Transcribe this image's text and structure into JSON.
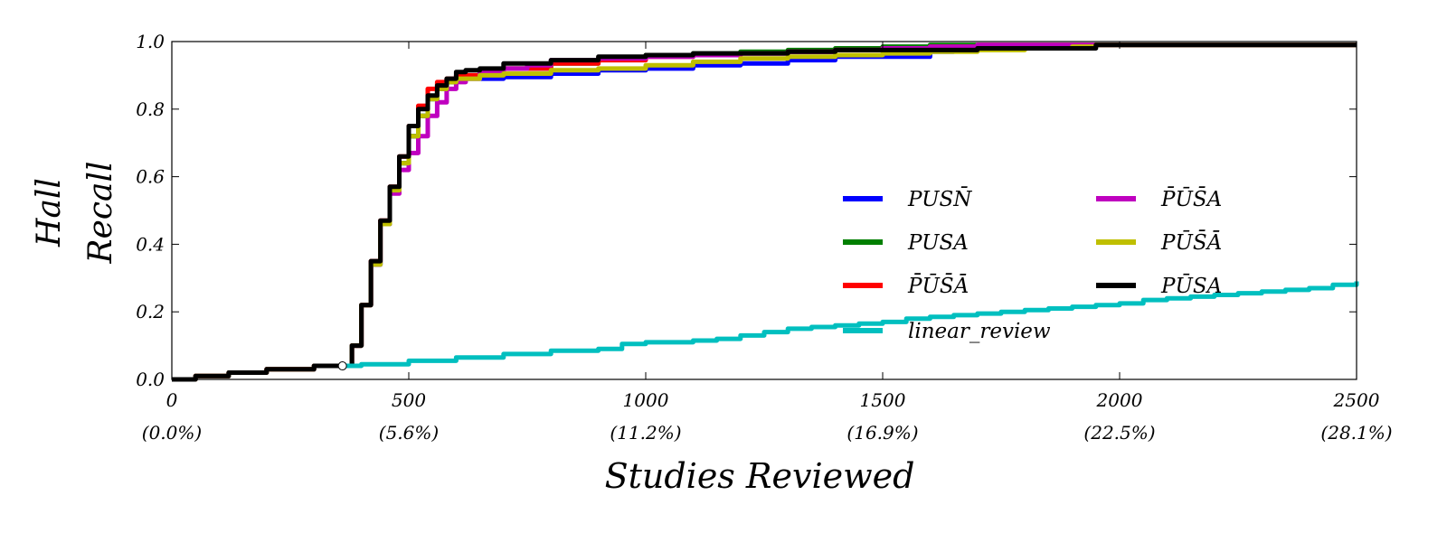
{
  "chart_data": {
    "type": "line",
    "xlabel": "Studies Reviewed",
    "ylabel_line1": "Hall",
    "ylabel_line2": "Recall",
    "xlim": [
      0,
      2500
    ],
    "ylim": [
      0.0,
      1.0
    ],
    "x_ticks": [
      {
        "value": 0,
        "label": "0",
        "sublabel": "(0.0%)"
      },
      {
        "value": 500,
        "label": "500",
        "sublabel": "(5.6%)"
      },
      {
        "value": 1000,
        "label": "1000",
        "sublabel": "(11.2%)"
      },
      {
        "value": 1500,
        "label": "1500",
        "sublabel": "(16.9%)"
      },
      {
        "value": 2000,
        "label": "2000",
        "sublabel": "(22.5%)"
      },
      {
        "value": 2500,
        "label": "2500",
        "sublabel": "(28.1%)"
      }
    ],
    "y_ticks": [
      {
        "value": 0.0,
        "label": "0.0"
      },
      {
        "value": 0.2,
        "label": "0.2"
      },
      {
        "value": 0.4,
        "label": "0.4"
      },
      {
        "value": 0.6,
        "label": "0.6"
      },
      {
        "value": 0.8,
        "label": "0.8"
      },
      {
        "value": 1.0,
        "label": "1.0"
      }
    ],
    "grid": false,
    "legend_placement": "center-right",
    "marker_point": {
      "x": 360,
      "y": 0.04
    },
    "series": [
      {
        "name": "PUSN̄",
        "color": "#0000ff",
        "x": [
          0,
          50,
          120,
          200,
          300,
          360,
          380,
          400,
          420,
          440,
          460,
          480,
          500,
          520,
          540,
          560,
          580,
          600,
          650,
          700,
          800,
          900,
          1000,
          1100,
          1200,
          1300,
          1400,
          1500,
          1600,
          1650,
          1700,
          1900,
          1950,
          2500
        ],
        "y": [
          0,
          0.01,
          0.02,
          0.03,
          0.04,
          0.04,
          0.1,
          0.22,
          0.34,
          0.46,
          0.56,
          0.64,
          0.72,
          0.78,
          0.83,
          0.86,
          0.88,
          0.89,
          0.89,
          0.895,
          0.905,
          0.915,
          0.92,
          0.93,
          0.935,
          0.945,
          0.955,
          0.955,
          0.97,
          0.975,
          0.98,
          0.985,
          0.99,
          0.99
        ]
      },
      {
        "name": "PUSA",
        "color": "#007f00",
        "x": [
          0,
          50,
          120,
          200,
          300,
          360,
          380,
          400,
          420,
          440,
          460,
          480,
          500,
          520,
          540,
          560,
          580,
          600,
          650,
          700,
          800,
          900,
          1000,
          1100,
          1200,
          1300,
          1400,
          1500,
          1600,
          1700,
          1900,
          1950,
          2500
        ],
        "y": [
          0,
          0.01,
          0.02,
          0.03,
          0.04,
          0.04,
          0.1,
          0.22,
          0.34,
          0.46,
          0.56,
          0.64,
          0.72,
          0.78,
          0.83,
          0.86,
          0.88,
          0.895,
          0.91,
          0.92,
          0.935,
          0.95,
          0.96,
          0.965,
          0.97,
          0.975,
          0.98,
          0.985,
          0.99,
          0.99,
          0.99,
          0.99,
          0.99
        ]
      },
      {
        "name": "P̄ŪS̄Ā",
        "color": "#ff0000",
        "x": [
          0,
          50,
          120,
          200,
          300,
          360,
          380,
          400,
          420,
          440,
          460,
          480,
          500,
          520,
          540,
          560,
          580,
          600,
          650,
          700,
          800,
          900,
          1000,
          1100,
          1200,
          1300,
          1400,
          1500,
          1600,
          1700,
          1900,
          1950,
          2500
        ],
        "y": [
          0,
          0.01,
          0.02,
          0.03,
          0.04,
          0.04,
          0.1,
          0.22,
          0.35,
          0.47,
          0.57,
          0.66,
          0.75,
          0.81,
          0.86,
          0.88,
          0.89,
          0.9,
          0.91,
          0.92,
          0.935,
          0.945,
          0.955,
          0.96,
          0.965,
          0.97,
          0.975,
          0.98,
          0.985,
          0.99,
          0.99,
          0.99,
          0.99
        ]
      },
      {
        "name": "P̄ŪS̄A",
        "color": "#bf00bf",
        "x": [
          0,
          50,
          120,
          200,
          300,
          360,
          380,
          400,
          420,
          440,
          460,
          480,
          500,
          520,
          540,
          560,
          580,
          600,
          620,
          650,
          700,
          750,
          800,
          900,
          1000,
          1100,
          1200,
          1300,
          1400,
          1500,
          1600,
          1700,
          1900,
          1950,
          2500
        ],
        "y": [
          0,
          0.01,
          0.02,
          0.03,
          0.04,
          0.04,
          0.1,
          0.22,
          0.34,
          0.46,
          0.55,
          0.62,
          0.67,
          0.72,
          0.78,
          0.82,
          0.86,
          0.88,
          0.89,
          0.91,
          0.92,
          0.93,
          0.945,
          0.95,
          0.955,
          0.96,
          0.965,
          0.97,
          0.975,
          0.98,
          0.985,
          0.99,
          0.99,
          0.99,
          0.99
        ]
      },
      {
        "name": "PŪS̄Ā",
        "color": "#bfbf00",
        "x": [
          0,
          50,
          120,
          200,
          300,
          360,
          380,
          400,
          420,
          440,
          460,
          480,
          500,
          520,
          540,
          560,
          580,
          600,
          650,
          700,
          800,
          900,
          1000,
          1100,
          1200,
          1300,
          1400,
          1500,
          1600,
          1700,
          1800,
          1900,
          1950,
          2500
        ],
        "y": [
          0,
          0.01,
          0.02,
          0.03,
          0.04,
          0.04,
          0.1,
          0.22,
          0.34,
          0.46,
          0.56,
          0.64,
          0.72,
          0.78,
          0.83,
          0.86,
          0.88,
          0.89,
          0.9,
          0.905,
          0.915,
          0.92,
          0.93,
          0.94,
          0.95,
          0.955,
          0.96,
          0.965,
          0.97,
          0.975,
          0.98,
          0.985,
          0.99,
          0.99
        ]
      },
      {
        "name": "PŪSA",
        "color": "#000000",
        "x": [
          0,
          50,
          120,
          200,
          300,
          360,
          380,
          400,
          420,
          440,
          460,
          480,
          500,
          520,
          540,
          560,
          580,
          600,
          620,
          650,
          700,
          800,
          900,
          1000,
          1100,
          1200,
          1300,
          1400,
          1500,
          1600,
          1700,
          1800,
          1900,
          1950,
          2500
        ],
        "y": [
          0,
          0.01,
          0.02,
          0.03,
          0.04,
          0.04,
          0.1,
          0.22,
          0.35,
          0.47,
          0.57,
          0.66,
          0.75,
          0.8,
          0.84,
          0.87,
          0.89,
          0.91,
          0.915,
          0.92,
          0.935,
          0.945,
          0.955,
          0.96,
          0.965,
          0.965,
          0.97,
          0.975,
          0.975,
          0.975,
          0.98,
          0.98,
          0.98,
          0.99,
          0.99
        ]
      },
      {
        "name": "linear_review",
        "color": "#00bfbf",
        "x": [
          360,
          400,
          500,
          600,
          700,
          800,
          900,
          950,
          1000,
          1100,
          1150,
          1200,
          1250,
          1300,
          1350,
          1400,
          1450,
          1500,
          1550,
          1600,
          1650,
          1700,
          1750,
          1800,
          1850,
          1900,
          1950,
          2000,
          2050,
          2100,
          2150,
          2200,
          2250,
          2300,
          2350,
          2400,
          2450,
          2500
        ],
        "y": [
          0.04,
          0.045,
          0.055,
          0.065,
          0.075,
          0.085,
          0.09,
          0.105,
          0.11,
          0.115,
          0.12,
          0.13,
          0.14,
          0.15,
          0.155,
          0.16,
          0.165,
          0.17,
          0.18,
          0.185,
          0.19,
          0.195,
          0.2,
          0.205,
          0.21,
          0.215,
          0.22,
          0.225,
          0.235,
          0.24,
          0.245,
          0.25,
          0.255,
          0.26,
          0.265,
          0.27,
          0.28,
          0.29
        ]
      }
    ]
  }
}
